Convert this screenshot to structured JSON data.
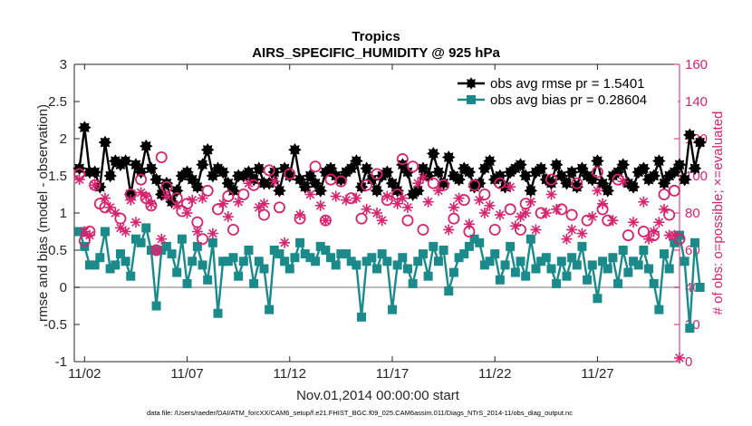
{
  "chart_data": {
    "type": "line",
    "title": "Tropics",
    "subtitle": "AIRS_SPECIFIC_HUMIDITY @ 925 hPa",
    "xlabel": "Nov.01,2014 00:00:00 start",
    "ylabel": "rmse and bias (model - observation)",
    "y2label": "# of obs: o=possible; ×=evaluated",
    "footnote": "data file: /Users/raeder/DAI/ATM_forcXX/CAM6_setup/f.e21.FHIST_BGC.f09_025.CAM6assim.011/Diags_NTrS_2014-11/obs_diag_output.nc",
    "xlim": [
      1.5,
      31.0
    ],
    "ylim": [
      -1,
      3
    ],
    "y2lim": [
      0,
      160
    ],
    "x_ticks": [
      2,
      7,
      12,
      17,
      22,
      27
    ],
    "x_tick_labels": [
      "11/02",
      "11/07",
      "11/12",
      "11/17",
      "11/22",
      "11/27"
    ],
    "y_ticks": [
      -1,
      -0.5,
      0,
      0.5,
      1,
      1.5,
      2,
      2.5,
      3
    ],
    "y_tick_labels": [
      "-1",
      "-0.5",
      "0",
      "0.5",
      "1",
      "1.5",
      "2",
      "2.5",
      "3"
    ],
    "y2_ticks": [
      0,
      20,
      40,
      60,
      80,
      100,
      120,
      140,
      160
    ],
    "y2_tick_labels": [
      "0",
      "20",
      "40",
      "60",
      "80",
      "100",
      "120",
      "140",
      "160"
    ],
    "colors": {
      "rmse": "#000000",
      "bias": "#1a8a8a",
      "obs": "#d6246e",
      "zero_line": "#b0b0b0",
      "axis": "#262626"
    },
    "legend": {
      "position": "top-right",
      "entries": [
        "obs avg rmse pr = 1.5401",
        "obs avg bias pr = 0.28604"
      ]
    },
    "series": [
      {
        "name": "obs avg rmse pr = 1.5401",
        "x_start": 1.75,
        "x_step": 0.25,
        "values": [
          1.6,
          2.15,
          1.55,
          1.55,
          1.35,
          1.95,
          1.5,
          1.7,
          1.65,
          1.7,
          1.25,
          1.65,
          1.55,
          1.9,
          1.6,
          1.45,
          1.25,
          1.4,
          1.15,
          1.3,
          1.5,
          1.55,
          1.45,
          1.35,
          1.65,
          1.85,
          1.5,
          1.6,
          1.55,
          1.4,
          1.3,
          1.5,
          1.5,
          1.55,
          1.45,
          1.6,
          1.4,
          1.4,
          1.55,
          1.3,
          1.6,
          1.5,
          1.85,
          1.45,
          1.35,
          1.5,
          1.4,
          1.3,
          1.55,
          1.6,
          1.5,
          1.45,
          1.55,
          1.6,
          1.7,
          1.35,
          1.6,
          1.45,
          1.3,
          1.5,
          1.55,
          1.4,
          1.3,
          1.65,
          1.55,
          1.25,
          1.3,
          1.6,
          1.5,
          1.8,
          1.55,
          1.4,
          1.75,
          1.5,
          1.45,
          1.6,
          1.55,
          1.35,
          1.4,
          1.6,
          1.7,
          1.45,
          1.5,
          1.35,
          1.55,
          1.6,
          1.65,
          1.5,
          1.3,
          1.55,
          1.6,
          1.45,
          1.4,
          1.65,
          1.5,
          1.4,
          1.55,
          1.35,
          1.6,
          1.5,
          1.45,
          1.7,
          1.4,
          1.3,
          1.5,
          1.55,
          1.65,
          1.4,
          1.35,
          1.55,
          1.6,
          1.45,
          1.5,
          1.7,
          1.4,
          1.5,
          1.55,
          1.65,
          1.45,
          2.05,
          1.6,
          1.95
        ]
      },
      {
        "name": "obs avg bias pr = 0.28604",
        "x_start": 1.75,
        "x_step": 0.25,
        "values": [
          0.75,
          0.55,
          0.3,
          0.3,
          0.4,
          0.75,
          0.25,
          0.3,
          0.45,
          0.35,
          0.15,
          0.65,
          0.6,
          0.8,
          0.5,
          -0.25,
          0.5,
          0.55,
          0.45,
          0.2,
          0.65,
          0.05,
          0.35,
          0.55,
          0.3,
          0.1,
          0.6,
          -0.35,
          0.35,
          0.35,
          0.4,
          0.15,
          0.35,
          0.5,
          0.05,
          0.35,
          0.25,
          -0.3,
          0.5,
          0.45,
          0.35,
          0.25,
          0.4,
          0.6,
          0.45,
          0.4,
          0.35,
          0.55,
          0.5,
          0.4,
          0.3,
          0.45,
          0.45,
          0.35,
          0.3,
          -0.4,
          0.35,
          0.4,
          0.25,
          0.45,
          0.35,
          -0.3,
          0.3,
          0.4,
          0.25,
          0.05,
          0.35,
          0.45,
          0.15,
          0.55,
          0.35,
          0.5,
          -0.05,
          0.2,
          0.4,
          0.45,
          0.55,
          0.65,
          0.6,
          0.3,
          0.35,
          0.45,
          0.1,
          0.3,
          0.55,
          0.2,
          0.35,
          0.15,
          0.65,
          0.25,
          0.35,
          0.4,
          0.25,
          0.05,
          0.35,
          0.15,
          0.4,
          0.3,
          0.55,
          0.1,
          0.3,
          -0.15,
          0.35,
          0.25,
          0.4,
          0.05,
          0.5,
          0.2,
          0.35,
          0.3,
          0.5,
          0.25,
          0.05,
          -0.3,
          0.45,
          0.25,
          0.6,
          0.7,
          0.35,
          -0.55,
          0.6,
          0.0
        ]
      }
    ],
    "obs_possible": {
      "name": "o=possible",
      "points": [
        [
          1.75,
          101
        ],
        [
          2.0,
          65
        ],
        [
          2.25,
          70
        ],
        [
          2.5,
          95
        ],
        [
          2.75,
          85
        ],
        [
          3.0,
          83
        ],
        [
          3.75,
          77
        ],
        [
          4.25,
          90
        ],
        [
          4.75,
          98
        ],
        [
          5.0,
          88
        ],
        [
          5.25,
          84
        ],
        [
          5.5,
          60
        ],
        [
          5.75,
          110
        ],
        [
          6.0,
          94
        ],
        [
          6.5,
          88
        ],
        [
          6.75,
          81
        ],
        [
          7.0,
          85
        ],
        [
          7.5,
          75
        ],
        [
          7.75,
          66
        ],
        [
          8.0,
          92
        ],
        [
          8.5,
          82
        ],
        [
          9.0,
          89
        ],
        [
          9.25,
          71
        ],
        [
          9.75,
          90
        ],
        [
          10.25,
          95
        ],
        [
          10.75,
          79
        ],
        [
          11.0,
          103
        ],
        [
          11.5,
          83
        ],
        [
          12.0,
          101
        ],
        [
          12.5,
          77
        ],
        [
          13.25,
          105
        ],
        [
          13.75,
          76
        ],
        [
          14.0,
          98
        ],
        [
          14.5,
          97
        ],
        [
          15.0,
          88
        ],
        [
          15.5,
          77
        ],
        [
          15.75,
          95
        ],
        [
          16.25,
          101
        ],
        [
          16.75,
          87
        ],
        [
          17.25,
          90
        ],
        [
          17.5,
          109
        ],
        [
          17.75,
          76
        ],
        [
          18.0,
          105
        ],
        [
          18.5,
          71
        ],
        [
          19.0,
          96
        ],
        [
          19.5,
          95
        ],
        [
          20.0,
          77
        ],
        [
          20.5,
          87
        ],
        [
          20.75,
          70
        ],
        [
          21.0,
          95
        ],
        [
          21.5,
          90
        ],
        [
          22.0,
          71
        ],
        [
          22.25,
          96
        ],
        [
          22.75,
          82
        ],
        [
          23.25,
          71
        ],
        [
          23.5,
          85
        ],
        [
          24.25,
          80
        ],
        [
          24.75,
          98
        ],
        [
          25.25,
          82
        ],
        [
          25.75,
          79
        ],
        [
          26.0,
          96
        ],
        [
          26.5,
          76
        ],
        [
          27.0,
          102
        ],
        [
          27.25,
          82
        ],
        [
          27.5,
          76
        ],
        [
          28.0,
          98
        ],
        [
          28.5,
          68
        ],
        [
          29.25,
          70
        ],
        [
          29.75,
          68
        ],
        [
          30.25,
          90
        ],
        [
          30.5,
          79
        ],
        [
          30.75,
          92
        ],
        [
          31.0,
          66
        ]
      ]
    },
    "obs_evaluated": {
      "name": "×=evaluated",
      "points": [
        [
          1.75,
          98
        ],
        [
          2.0,
          70
        ],
        [
          2.25,
          68
        ],
        [
          2.5,
          95
        ],
        [
          3.0,
          88
        ],
        [
          3.25,
          83
        ],
        [
          3.5,
          80
        ],
        [
          3.75,
          72
        ],
        [
          4.0,
          70
        ],
        [
          4.25,
          87
        ],
        [
          4.5,
          75
        ],
        [
          4.75,
          91
        ],
        [
          5.0,
          89
        ],
        [
          5.25,
          85
        ],
        [
          5.5,
          60
        ],
        [
          5.75,
          66
        ],
        [
          6.0,
          89
        ],
        [
          6.5,
          84
        ],
        [
          7.0,
          80
        ],
        [
          7.25,
          87
        ],
        [
          7.5,
          70
        ],
        [
          7.75,
          88
        ],
        [
          8.25,
          69
        ],
        [
          8.75,
          85
        ],
        [
          9.0,
          78
        ],
        [
          9.5,
          86
        ],
        [
          10.0,
          96
        ],
        [
          10.5,
          83
        ],
        [
          10.75,
          85
        ],
        [
          11.25,
          97
        ],
        [
          11.75,
          64
        ],
        [
          12.5,
          79
        ],
        [
          13.0,
          90
        ],
        [
          13.5,
          84
        ],
        [
          13.75,
          76
        ],
        [
          14.25,
          89
        ],
        [
          14.75,
          87
        ],
        [
          15.25,
          88
        ],
        [
          15.75,
          82
        ],
        [
          16.25,
          80
        ],
        [
          16.5,
          76
        ],
        [
          16.75,
          89
        ],
        [
          17.25,
          85
        ],
        [
          17.5,
          88
        ],
        [
          17.75,
          83
        ],
        [
          18.25,
          96
        ],
        [
          18.5,
          99
        ],
        [
          18.75,
          86
        ],
        [
          19.25,
          92
        ],
        [
          19.75,
          71
        ],
        [
          20.0,
          83
        ],
        [
          20.25,
          88
        ],
        [
          20.75,
          74
        ],
        [
          21.25,
          87
        ],
        [
          21.5,
          80
        ],
        [
          21.75,
          84
        ],
        [
          22.25,
          79
        ],
        [
          22.75,
          94
        ],
        [
          23.0,
          73
        ],
        [
          23.25,
          78
        ],
        [
          23.5,
          80
        ],
        [
          23.75,
          86
        ],
        [
          24.0,
          71
        ],
        [
          24.5,
          80
        ],
        [
          24.75,
          90
        ],
        [
          25.0,
          82
        ],
        [
          25.5,
          66
        ],
        [
          25.75,
          71
        ],
        [
          26.25,
          69
        ],
        [
          26.75,
          78
        ],
        [
          27.0,
          92
        ],
        [
          27.25,
          85
        ],
        [
          27.75,
          76
        ],
        [
          28.25,
          97
        ],
        [
          28.75,
          75
        ],
        [
          29.25,
          86
        ],
        [
          29.5,
          66
        ],
        [
          29.75,
          70
        ],
        [
          30.0,
          75
        ],
        [
          30.25,
          82
        ],
        [
          30.5,
          68
        ],
        [
          30.75,
          68
        ],
        [
          31.0,
          2
        ]
      ]
    }
  }
}
